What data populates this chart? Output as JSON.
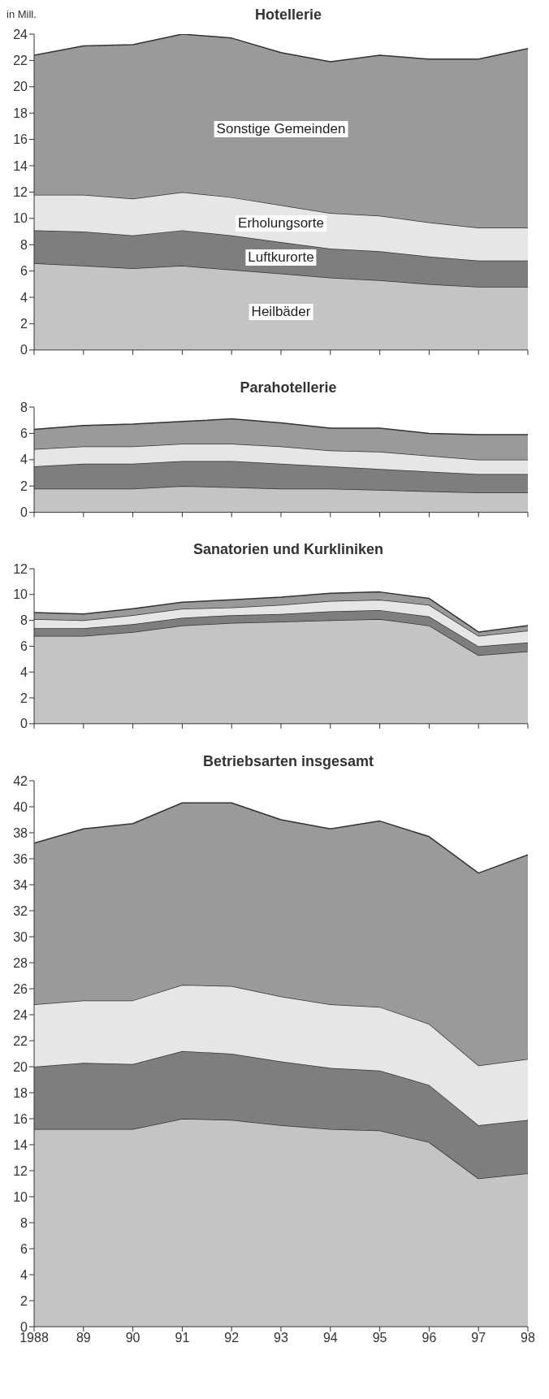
{
  "chart_data": [
    {
      "type": "area",
      "title": "Hotellerie",
      "ylabel": "in Mill.",
      "stacked": true,
      "categories": [
        "1988",
        "89",
        "90",
        "91",
        "92",
        "93",
        "94",
        "95",
        "96",
        "97",
        "98"
      ],
      "ylim": [
        0,
        24
      ],
      "yticks": [
        0,
        2,
        4,
        6,
        8,
        10,
        12,
        14,
        16,
        18,
        20,
        22,
        24
      ],
      "tick_labels": "y",
      "legend": false,
      "grid": false,
      "series": [
        {
          "name": "Heilbäder",
          "color": "#c4c4c4",
          "values": [
            6.6,
            6.4,
            6.2,
            6.4,
            6.1,
            5.8,
            5.5,
            5.3,
            5.0,
            4.8,
            4.8
          ]
        },
        {
          "name": "Luftkurorte",
          "color": "#7e7e7e",
          "values": [
            2.5,
            2.6,
            2.5,
            2.7,
            2.6,
            2.4,
            2.2,
            2.2,
            2.1,
            2.0,
            2.0
          ]
        },
        {
          "name": "Erholungsorte",
          "color": "#e6e6e6",
          "values": [
            2.7,
            2.8,
            2.8,
            2.9,
            2.9,
            2.8,
            2.7,
            2.7,
            2.6,
            2.5,
            2.5
          ]
        },
        {
          "name": "Sonstige Gemeinden",
          "color": "#9a9a9a",
          "values": [
            10.6,
            11.3,
            11.7,
            12.0,
            12.1,
            11.6,
            11.5,
            12.2,
            12.4,
            12.8,
            13.6
          ]
        }
      ]
    },
    {
      "type": "area",
      "title": "Parahotellerie",
      "stacked": true,
      "categories": [
        "1988",
        "89",
        "90",
        "91",
        "92",
        "93",
        "94",
        "95",
        "96",
        "97",
        "98"
      ],
      "ylim": [
        0,
        8
      ],
      "yticks": [
        0,
        2,
        4,
        6,
        8
      ],
      "tick_labels": "y",
      "legend": false,
      "grid": false,
      "series": [
        {
          "color": "#c4c4c4",
          "values": [
            1.8,
            1.8,
            1.8,
            2.0,
            1.9,
            1.8,
            1.8,
            1.7,
            1.6,
            1.5,
            1.5
          ]
        },
        {
          "color": "#7e7e7e",
          "values": [
            1.7,
            1.9,
            1.9,
            1.9,
            2.0,
            1.9,
            1.7,
            1.6,
            1.5,
            1.4,
            1.4
          ]
        },
        {
          "color": "#e6e6e6",
          "values": [
            1.3,
            1.3,
            1.3,
            1.3,
            1.3,
            1.3,
            1.2,
            1.3,
            1.2,
            1.1,
            1.1
          ]
        },
        {
          "color": "#9a9a9a",
          "values": [
            1.5,
            1.6,
            1.7,
            1.7,
            1.9,
            1.8,
            1.7,
            1.8,
            1.7,
            1.9,
            1.9
          ]
        }
      ]
    },
    {
      "type": "area",
      "title": "Sanatorien und Kurkliniken",
      "stacked": true,
      "categories": [
        "1988",
        "89",
        "90",
        "91",
        "92",
        "93",
        "94",
        "95",
        "96",
        "97",
        "98"
      ],
      "ylim": [
        0,
        12
      ],
      "yticks": [
        0,
        2,
        4,
        6,
        8,
        10,
        12
      ],
      "tick_labels": "y",
      "legend": false,
      "grid": false,
      "series": [
        {
          "color": "#c4c4c4",
          "values": [
            6.8,
            6.8,
            7.1,
            7.6,
            7.8,
            7.9,
            8.0,
            8.1,
            7.6,
            5.3,
            5.6
          ]
        },
        {
          "color": "#7e7e7e",
          "values": [
            0.6,
            0.6,
            0.6,
            0.6,
            0.6,
            0.6,
            0.7,
            0.7,
            0.7,
            0.7,
            0.7
          ]
        },
        {
          "color": "#e6e6e6",
          "values": [
            0.7,
            0.6,
            0.7,
            0.7,
            0.6,
            0.7,
            0.8,
            0.8,
            0.9,
            0.8,
            0.9
          ]
        },
        {
          "color": "#9a9a9a",
          "values": [
            0.5,
            0.5,
            0.5,
            0.5,
            0.6,
            0.6,
            0.6,
            0.6,
            0.5,
            0.3,
            0.4
          ]
        }
      ]
    },
    {
      "type": "area",
      "title": "Betriebsarten insgesamt",
      "stacked": true,
      "categories": [
        "1988",
        "89",
        "90",
        "91",
        "92",
        "93",
        "94",
        "95",
        "96",
        "97",
        "98"
      ],
      "ylim": [
        0,
        42
      ],
      "yticks": [
        0,
        2,
        4,
        6,
        8,
        10,
        12,
        14,
        16,
        18,
        20,
        22,
        24,
        26,
        28,
        30,
        32,
        34,
        36,
        38,
        40,
        42
      ],
      "legend": false,
      "grid": false,
      "series": [
        {
          "color": "#c4c4c4",
          "values": [
            15.2,
            15.2,
            15.2,
            16.0,
            15.9,
            15.5,
            15.2,
            15.1,
            14.2,
            11.4,
            11.8
          ]
        },
        {
          "color": "#7e7e7e",
          "values": [
            4.8,
            5.1,
            5.0,
            5.2,
            5.1,
            4.9,
            4.7,
            4.6,
            4.4,
            4.1,
            4.1
          ]
        },
        {
          "color": "#e6e6e6",
          "values": [
            4.8,
            4.8,
            4.9,
            5.1,
            5.2,
            5.0,
            4.9,
            4.9,
            4.7,
            4.6,
            4.7
          ]
        },
        {
          "color": "#9a9a9a",
          "values": [
            12.4,
            13.2,
            13.6,
            14.0,
            14.1,
            13.6,
            13.5,
            14.3,
            14.4,
            14.8,
            15.7
          ]
        }
      ]
    }
  ]
}
